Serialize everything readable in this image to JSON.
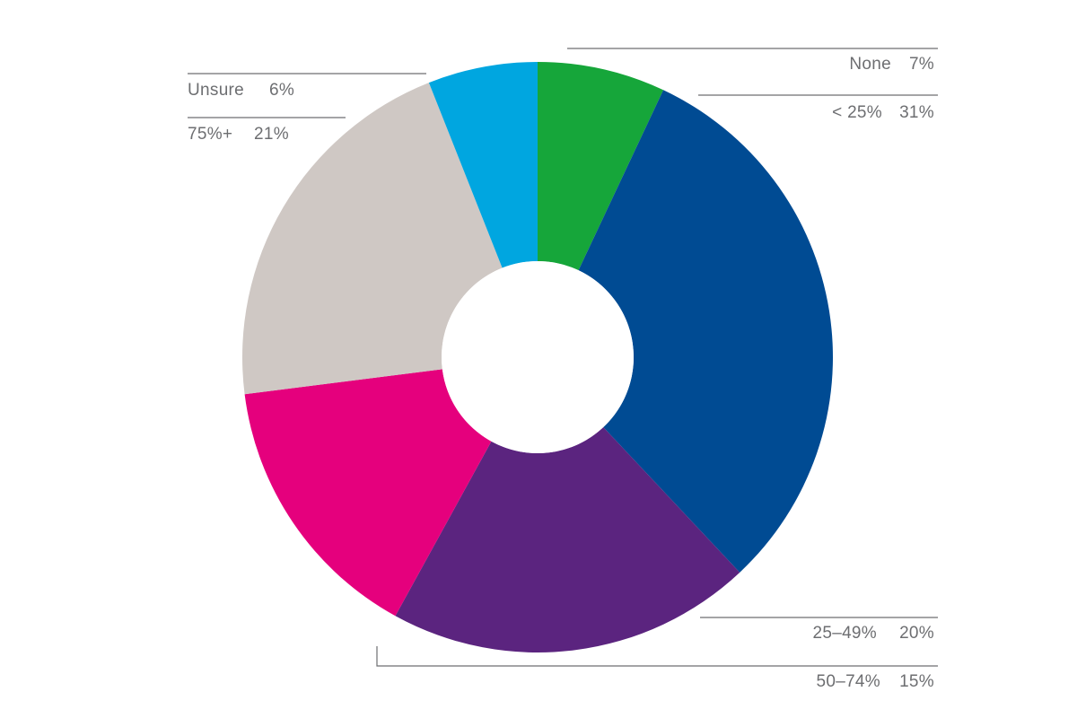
{
  "chart_data": {
    "type": "pie",
    "variant": "donut",
    "title": "",
    "start_angle_deg": 0,
    "direction": "clockwise",
    "slices": [
      {
        "label": "None",
        "value": 7,
        "value_label": "7%",
        "color": "#16a63a"
      },
      {
        "label": "< 25%",
        "value": 31,
        "value_label": "31%",
        "color": "#004b93"
      },
      {
        "label": "25–49%",
        "value": 20,
        "value_label": "20%",
        "color": "#5b247f"
      },
      {
        "label": "50–74%",
        "value": 15,
        "value_label": "15%",
        "color": "#e5007d"
      },
      {
        "label": "75%+",
        "value": 21,
        "value_label": "21%",
        "color": "#cfc8c4"
      },
      {
        "label": "Unsure",
        "value": 6,
        "value_label": "6%",
        "color": "#00a6e0"
      }
    ],
    "legend": "none",
    "label_style": "leader lines",
    "text_color": "#6d6e71"
  }
}
